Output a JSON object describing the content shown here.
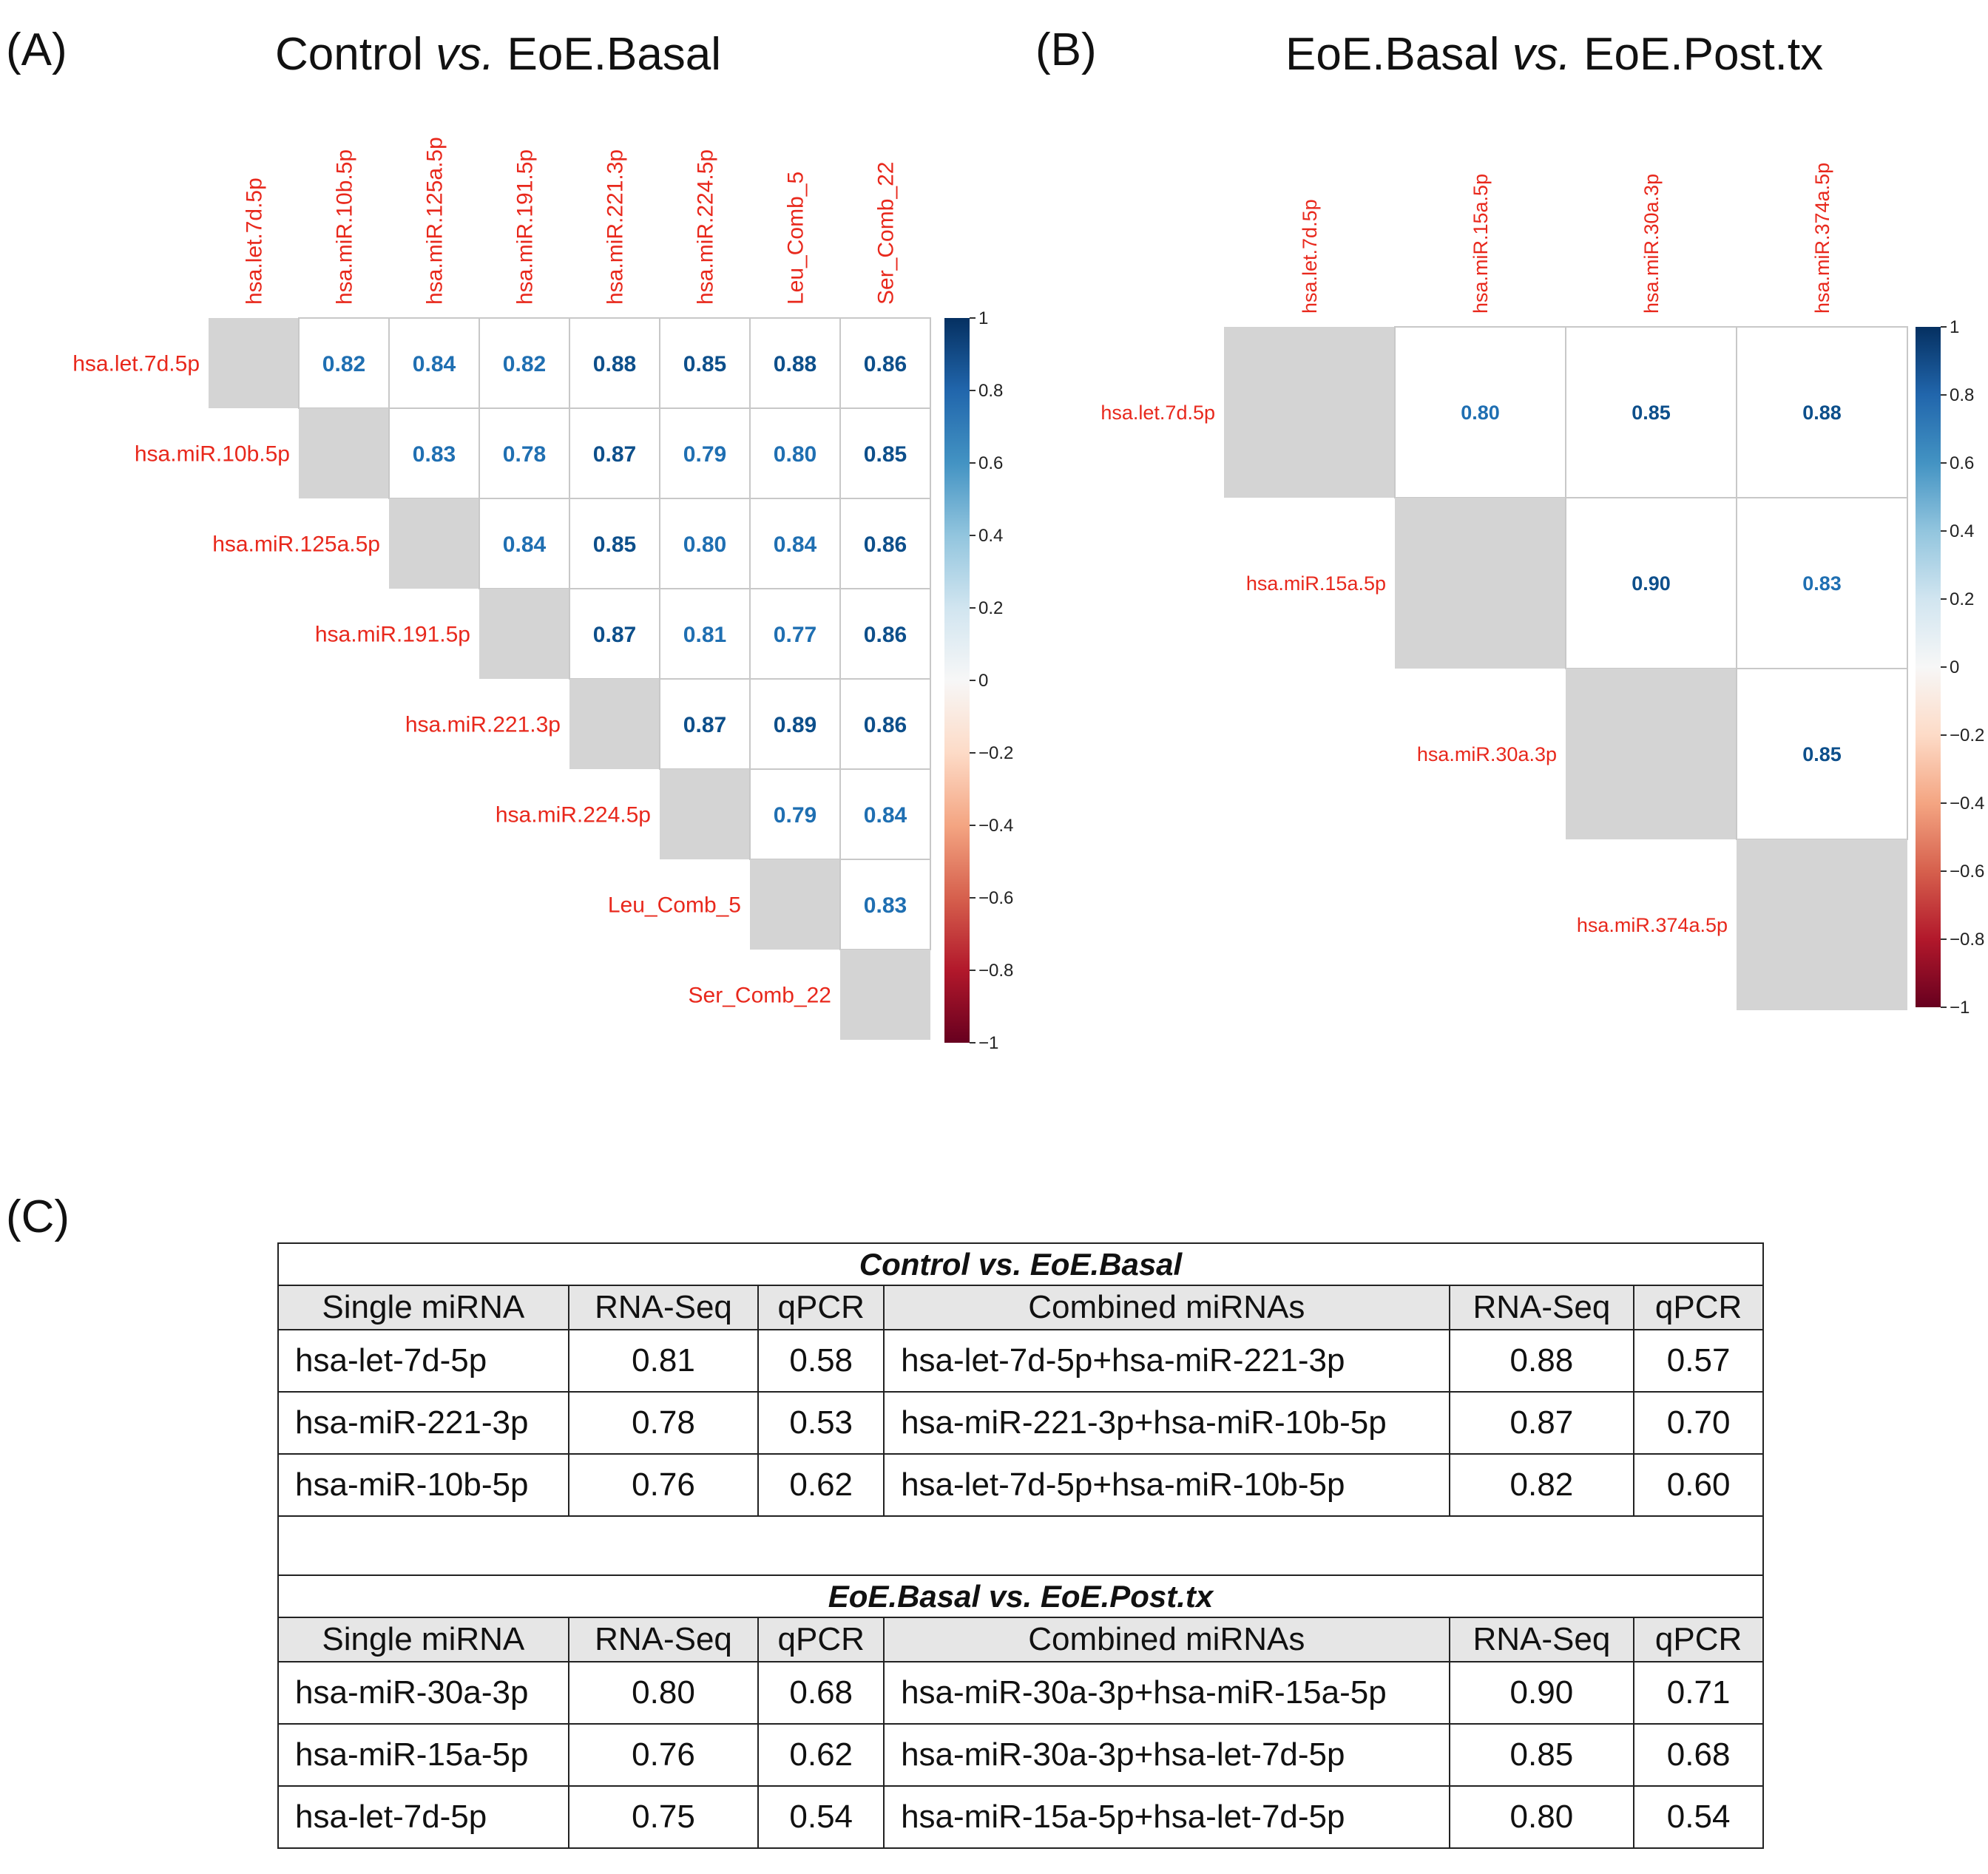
{
  "panels": {
    "a": {
      "label": "(A)",
      "title_pre": "Control ",
      "title_vs": "vs.",
      "title_post": " EoE.Basal"
    },
    "b": {
      "label": "(B)",
      "title_pre": "EoE.Basal ",
      "title_vs": "vs.",
      "title_post": " EoE.Post.tx"
    },
    "c": {
      "label": "(C)"
    }
  },
  "colors": {
    "label_red": "#e8281c",
    "value_blue_dark": "#0d4f8b",
    "value_blue_mid": "#1f6fb2",
    "diag_gray": "#d4d4d4",
    "grid": "#c8c8c8"
  },
  "chart_data": [
    {
      "type": "heatmap",
      "title": "Control vs. EoE.Basal",
      "labels": [
        "hsa.let.7d.5p",
        "hsa.miR.10b.5p",
        "hsa.miR.125a.5p",
        "hsa.miR.191.5p",
        "hsa.miR.221.3p",
        "hsa.miR.224.5p",
        "Leu_Comb_5",
        "Ser_Comb_22"
      ],
      "matrix": [
        [
          null,
          0.82,
          0.84,
          0.82,
          0.88,
          0.85,
          0.88,
          0.86
        ],
        [
          null,
          null,
          0.83,
          0.78,
          0.87,
          0.79,
          0.8,
          0.85
        ],
        [
          null,
          null,
          null,
          0.84,
          0.85,
          0.8,
          0.84,
          0.86
        ],
        [
          null,
          null,
          null,
          null,
          0.87,
          0.81,
          0.77,
          0.86
        ],
        [
          null,
          null,
          null,
          null,
          null,
          0.87,
          0.89,
          0.86
        ],
        [
          null,
          null,
          null,
          null,
          null,
          null,
          0.79,
          0.84
        ],
        [
          null,
          null,
          null,
          null,
          null,
          null,
          null,
          0.83
        ],
        [
          null,
          null,
          null,
          null,
          null,
          null,
          null,
          null
        ]
      ],
      "colorbar": {
        "range": [
          -1,
          1
        ],
        "ticks": [
          "1",
          "0.8",
          "0.6",
          "0.4",
          "0.2",
          "0",
          "−0.2",
          "−0.4",
          "−0.6",
          "−0.8",
          "−1"
        ]
      }
    },
    {
      "type": "heatmap",
      "title": "EoE.Basal vs. EoE.Post.tx",
      "labels": [
        "hsa.let.7d.5p",
        "hsa.miR.15a.5p",
        "hsa.miR.30a.3p",
        "hsa.miR.374a.5p"
      ],
      "matrix": [
        [
          null,
          0.8,
          0.85,
          0.88
        ],
        [
          null,
          null,
          0.9,
          0.83
        ],
        [
          null,
          null,
          null,
          0.85
        ],
        [
          null,
          null,
          null,
          null
        ]
      ],
      "colorbar": {
        "range": [
          -1,
          1
        ],
        "ticks": [
          "1",
          "0.8",
          "0.6",
          "0.4",
          "0.2",
          "0",
          "−0.2",
          "−0.4",
          "−0.6",
          "−0.8",
          "−1"
        ]
      }
    },
    {
      "type": "table",
      "sections": [
        {
          "title": "Control vs. EoE.Basal",
          "headers": [
            "Single miRNA",
            "RNA-Seq",
            "qPCR",
            "Combined miRNAs",
            "RNA-Seq",
            "qPCR"
          ],
          "rows": [
            [
              "hsa-let-7d-5p",
              "0.81",
              "0.58",
              "hsa-let-7d-5p+hsa-miR-221-3p",
              "0.88",
              "0.57"
            ],
            [
              "hsa-miR-221-3p",
              "0.78",
              "0.53",
              "hsa-miR-221-3p+hsa-miR-10b-5p",
              "0.87",
              "0.70"
            ],
            [
              "hsa-miR-10b-5p",
              "0.76",
              "0.62",
              "hsa-let-7d-5p+hsa-miR-10b-5p",
              "0.82",
              "0.60"
            ]
          ]
        },
        {
          "title": "EoE.Basal vs. EoE.Post.tx",
          "headers": [
            "Single miRNA",
            "RNA-Seq",
            "qPCR",
            "Combined miRNAs",
            "RNA-Seq",
            "qPCR"
          ],
          "rows": [
            [
              "hsa-miR-30a-3p",
              "0.80",
              "0.68",
              "hsa-miR-30a-3p+hsa-miR-15a-5p",
              "0.90",
              "0.71"
            ],
            [
              "hsa-miR-15a-5p",
              "0.76",
              "0.62",
              "hsa-miR-30a-3p+hsa-let-7d-5p",
              "0.85",
              "0.68"
            ],
            [
              "hsa-let-7d-5p",
              "0.75",
              "0.54",
              "hsa-miR-15a-5p+hsa-let-7d-5p",
              "0.80",
              "0.54"
            ]
          ]
        }
      ]
    }
  ]
}
